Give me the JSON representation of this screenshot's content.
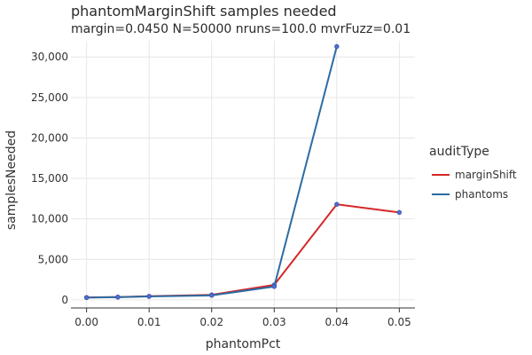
{
  "chart_data": {
    "type": "line",
    "title": "phantomMarginShift samples needed",
    "subtitle": "margin=0.0450 N=50000 nruns=100.0 mvrFuzz=0.01",
    "xlabel": "phantomPct",
    "ylabel": "samplesNeeded",
    "xlim": [
      -0.0025,
      0.0525
    ],
    "ylim": [
      -1000,
      32000
    ],
    "x_ticks": [
      0.0,
      0.01,
      0.02,
      0.03,
      0.04,
      0.05
    ],
    "x_tick_labels": [
      "0.00",
      "0.01",
      "0.02",
      "0.03",
      "0.04",
      "0.05"
    ],
    "y_ticks": [
      0,
      5000,
      10000,
      15000,
      20000,
      25000,
      30000
    ],
    "y_tick_labels": [
      "0",
      "5,000",
      "10,000",
      "15,000",
      "20,000",
      "25,000",
      "30,000"
    ],
    "grid": true,
    "legend": {
      "title": "auditType",
      "placement": "right"
    },
    "marker_color": "#4f6fd1",
    "series": [
      {
        "name": "marginShift",
        "color": "#d62728",
        "points": [
          {
            "x": 0.0,
            "y": 300
          },
          {
            "x": 0.005,
            "y": 350
          },
          {
            "x": 0.01,
            "y": 450
          },
          {
            "x": 0.02,
            "y": 620
          },
          {
            "x": 0.03,
            "y": 1850
          },
          {
            "x": 0.04,
            "y": 11800
          },
          {
            "x": 0.05,
            "y": 10800
          }
        ]
      },
      {
        "name": "phantoms",
        "color": "#2b6ca3",
        "points": [
          {
            "x": 0.0,
            "y": 280
          },
          {
            "x": 0.005,
            "y": 330
          },
          {
            "x": 0.01,
            "y": 420
          },
          {
            "x": 0.02,
            "y": 550
          },
          {
            "x": 0.03,
            "y": 1650
          },
          {
            "x": 0.04,
            "y": 31300
          }
        ]
      }
    ]
  }
}
